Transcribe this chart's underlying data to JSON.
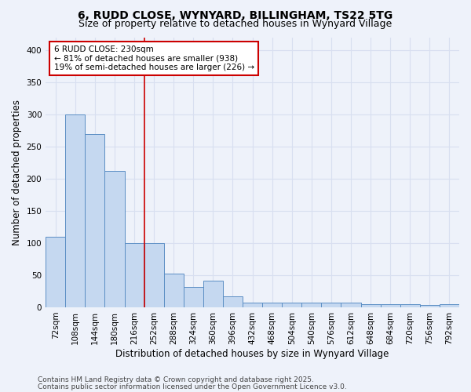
{
  "title_line1": "6, RUDD CLOSE, WYNYARD, BILLINGHAM, TS22 5TG",
  "title_line2": "Size of property relative to detached houses in Wynyard Village",
  "xlabel": "Distribution of detached houses by size in Wynyard Village",
  "ylabel": "Number of detached properties",
  "categories": [
    "72sqm",
    "108sqm",
    "144sqm",
    "180sqm",
    "216sqm",
    "252sqm",
    "288sqm",
    "324sqm",
    "360sqm",
    "396sqm",
    "432sqm",
    "468sqm",
    "504sqm",
    "540sqm",
    "576sqm",
    "612sqm",
    "648sqm",
    "684sqm",
    "720sqm",
    "756sqm",
    "792sqm"
  ],
  "values": [
    110,
    300,
    270,
    212,
    100,
    100,
    52,
    32,
    42,
    17,
    7,
    7,
    7,
    7,
    7,
    7,
    5,
    5,
    5,
    3,
    5
  ],
  "bar_color": "#c5d8f0",
  "bar_edge_color": "#5b8ec4",
  "red_line_x": 4.5,
  "annotation_text": "6 RUDD CLOSE: 230sqm\n← 81% of detached houses are smaller (938)\n19% of semi-detached houses are larger (226) →",
  "annotation_box_color": "#ffffff",
  "annotation_box_edge_color": "#cc0000",
  "ylim": [
    0,
    420
  ],
  "yticks": [
    0,
    50,
    100,
    150,
    200,
    250,
    300,
    350,
    400
  ],
  "footer_line1": "Contains HM Land Registry data © Crown copyright and database right 2025.",
  "footer_line2": "Contains public sector information licensed under the Open Government Licence v3.0.",
  "bg_color": "#eef2fa",
  "grid_color": "#d8dff0",
  "title_fontsize": 10,
  "subtitle_fontsize": 9,
  "axis_label_fontsize": 8.5,
  "tick_fontsize": 7.5,
  "footer_fontsize": 6.5,
  "annot_fontsize": 7.5
}
